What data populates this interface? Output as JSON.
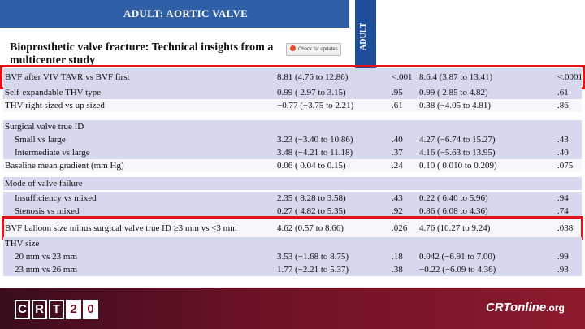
{
  "journal": {
    "section": "ADULT: AORTIC VALVE",
    "side_tab": "ADULT"
  },
  "paper": {
    "title": "Bioprosthetic valve fracture: Technical insights from a multicenter study",
    "updates_badge": "Check for updates"
  },
  "table": {
    "rows": [
      {
        "label": "BVF after VIV TAVR vs BVF first",
        "e1": "8.81 (4.76 to 12.86)",
        "p1": "<.001",
        "e2": "8.6.4 (3.87 to 13.41)",
        "p2": "<.0001",
        "indent": false,
        "shade": "lav",
        "highlight": true
      },
      {
        "label": "Self-expandable THV type",
        "e1": "0.99 ( 2.97 to 3.15)",
        "p1": ".95",
        "e2": "0.99 ( 2.85 to 4.82)",
        "p2": ".61",
        "indent": false,
        "shade": "lav"
      },
      {
        "label": "THV right sized vs up sized",
        "e1": "−0.77 (−3.75 to 2.21)",
        "p1": ".61",
        "e2": "0.38 (−4.05 to 4.81)",
        "p2": ".86",
        "indent": false,
        "shade": "white"
      },
      {
        "label": "Surgical valve true ID",
        "e1": "",
        "p1": "",
        "e2": "",
        "p2": "",
        "indent": false,
        "shade": "lav"
      },
      {
        "label": "Small vs large",
        "e1": "3.23 (−3.40 to 10.86)",
        "p1": ".40",
        "e2": "4.27 (−6.74 to 15.27)",
        "p2": ".43",
        "indent": true,
        "shade": "lav"
      },
      {
        "label": "Intermediate vs large",
        "e1": "3.48 (−4.21 to 11.18)",
        "p1": ".37",
        "e2": "4.16 (−5.63 to 13.95)",
        "p2": ".40",
        "indent": true,
        "shade": "lav"
      },
      {
        "label": "Baseline mean gradient (mm Hg)",
        "e1": "0.06 ( 0.04 to 0.15)",
        "p1": ".24",
        "e2": "0.10 ( 0.010 to 0.209)",
        "p2": ".075",
        "indent": false,
        "shade": "white"
      },
      {
        "label": "Mode of valve failure",
        "e1": "",
        "p1": "",
        "e2": "",
        "p2": "",
        "indent": false,
        "shade": "lav"
      },
      {
        "label": "Insufficiency vs mixed",
        "e1": "2.35 ( 8.28 to 3.58)",
        "p1": ".43",
        "e2": "0.22 ( 6.40 to 5.96)",
        "p2": ".94",
        "indent": true,
        "shade": "lav"
      },
      {
        "label": "Stenosis vs mixed",
        "e1": "0.27 ( 4.82 to 5.35)",
        "p1": ".92",
        "e2": "0.86 ( 6.08 to 4.36)",
        "p2": ".74",
        "indent": true,
        "shade": "lav"
      },
      {
        "label": "BVF balloon size minus surgical valve true ID ≥3 mm vs <3 mm",
        "e1": "4.62 (0.57 to 8.66)",
        "p1": ".026",
        "e2": "4.76 (10.27 to 9.24)",
        "p2": ".038",
        "indent": false,
        "shade": "white",
        "highlight": true
      },
      {
        "label": "THV size",
        "e1": "",
        "p1": "",
        "e2": "",
        "p2": "",
        "indent": false,
        "shade": "lav"
      },
      {
        "label": "20 mm vs 23 mm",
        "e1": "3.53 (−1.68 to 8.75)",
        "p1": ".18",
        "e2": "0.042 (−6.91 to 7.00)",
        "p2": ".99",
        "indent": true,
        "shade": "lav"
      },
      {
        "label": "23 mm vs 26 mm",
        "e1": "1.77 (−2.21 to 5.37)",
        "p1": ".38",
        "e2": "−0.22 (−6.09 to 4.36)",
        "p2": ".93",
        "indent": true,
        "shade": "lav"
      }
    ]
  },
  "footer": {
    "logo_letters": [
      "C",
      "R",
      "T",
      "2",
      "0"
    ],
    "site_main": "CRTonline",
    "site_tail": ".org"
  },
  "colors": {
    "header_blue": "#2f5fa7",
    "row_lavender": "#d6d8ed",
    "highlight_red": "#e1141b",
    "footer_maroon": "#6e1226"
  }
}
